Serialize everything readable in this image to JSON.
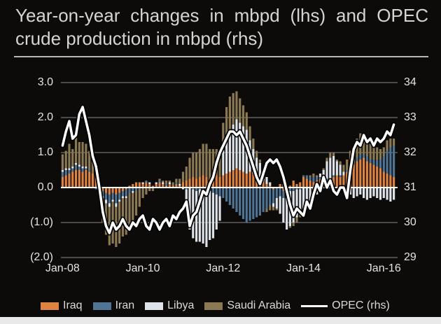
{
  "title": {
    "line1": "Year-on-year changes in mbpd (lhs) and OPEC",
    "line2": "crude production in mbpd (rhs)"
  },
  "colors": {
    "background": "#0c0b0a",
    "title_text": "#d6d4d1",
    "axis_text": "#e6e4e1",
    "gridline": "#8a8a8a",
    "zero_line": "#ffffff",
    "iraq": "#df8340",
    "iran": "#4f7496",
    "libya": "#dde3e8",
    "saudi_arabia": "#8a7952",
    "opec_line": "#ffffff"
  },
  "chart_data": {
    "type": "bar",
    "subtype": "stacked-bars-with-line-overlay",
    "x_start": "Jan-08",
    "x_frequency": "monthly",
    "n_points": 100,
    "x_tick_labels": [
      "Jan-08",
      "Jan-10",
      "Jan-12",
      "Jan-14",
      "Jan-16"
    ],
    "x_tick_indices": [
      0,
      24,
      48,
      72,
      96
    ],
    "lhs_axis": {
      "label": "YoY change in mbpd",
      "tick_labels": [
        "3.0",
        "2.0",
        "1.0",
        "0.0",
        "(1.0)",
        "(2.0)"
      ],
      "tick_values": [
        3,
        2,
        1,
        0,
        -1,
        -2
      ],
      "ylim": [
        -2,
        3
      ]
    },
    "rhs_axis": {
      "label": "OPEC crude production in mbpd",
      "tick_labels": [
        "34",
        "33",
        "32",
        "31",
        "30",
        "29"
      ],
      "tick_values": [
        34,
        33,
        32,
        31,
        30,
        29
      ],
      "ylim": [
        29,
        34
      ]
    },
    "grid": "horizontal-only",
    "legend_position": "bottom",
    "series": [
      {
        "name": "Iraq",
        "color": "#df8340",
        "axis": "lhs",
        "values": [
          0.3,
          0.35,
          0.4,
          0.45,
          0.5,
          0.5,
          0.45,
          0.5,
          0.45,
          0.4,
          0.3,
          0.2,
          -0.1,
          -0.15,
          -0.2,
          -0.15,
          -0.2,
          -0.15,
          -0.1,
          -0.05,
          0.05,
          0.1,
          0.15,
          0.15,
          0.1,
          0.15,
          0.1,
          0.05,
          0.1,
          0.15,
          0.1,
          0.05,
          0.1,
          0.05,
          0.1,
          0.05,
          0.15,
          0.2,
          0.25,
          0.3,
          0.25,
          0.3,
          0.35,
          0.3,
          0.25,
          0.3,
          0.35,
          0.3,
          0.35,
          0.4,
          0.45,
          0.5,
          0.55,
          0.5,
          0.45,
          0.4,
          0.45,
          0.4,
          0.35,
          0.3,
          0.2,
          0.1,
          0.05,
          -0.05,
          0,
          0.1,
          -0.1,
          -0.15,
          0.05,
          0.2,
          0.1,
          0.15,
          0.3,
          0.25,
          0.2,
          0.15,
          0.2,
          0.25,
          0.1,
          0.2,
          0.25,
          0.3,
          0.35,
          0.3,
          0.35,
          0.45,
          0.55,
          0.65,
          0.75,
          0.8,
          0.85,
          0.75,
          0.7,
          0.65,
          0.6,
          0.55,
          0.45,
          0.4,
          0.35,
          0.3
        ]
      },
      {
        "name": "Iran",
        "color": "#4f7496",
        "axis": "lhs",
        "values": [
          0.15,
          0.15,
          0.1,
          0.1,
          0.15,
          0.1,
          0.1,
          0.05,
          0.05,
          0,
          -0.05,
          -0.1,
          -0.15,
          -0.2,
          -0.25,
          -0.2,
          -0.25,
          -0.2,
          -0.15,
          -0.2,
          -0.15,
          -0.1,
          -0.1,
          -0.05,
          0,
          0.05,
          0,
          -0.05,
          0,
          0.05,
          0,
          0.05,
          0,
          0,
          0.05,
          0,
          0,
          -0.05,
          0,
          -0.05,
          -0.1,
          -0.05,
          -0.1,
          -0.15,
          -0.1,
          -0.15,
          -0.2,
          -0.25,
          -0.3,
          -0.4,
          -0.5,
          -0.6,
          -0.7,
          -0.8,
          -0.9,
          -1,
          -0.95,
          -0.9,
          -0.85,
          -0.8,
          -0.7,
          -0.6,
          -0.5,
          -0.4,
          -0.3,
          -0.25,
          -0.2,
          -0.15,
          -0.1,
          -0.1,
          -0.05,
          -0.05,
          0.05,
          0.1,
          0.1,
          0.15,
          0.1,
          0.05,
          0.1,
          0.05,
          0,
          0.05,
          0,
          0.05,
          0,
          0.05,
          0.1,
          0.05,
          0.1,
          0.15,
          0.1,
          0.15,
          0.1,
          0.15,
          0.2,
          0.25,
          0.45,
          0.65,
          0.8,
          0.9
        ]
      },
      {
        "name": "Libya",
        "color": "#dde3e8",
        "axis": "lhs",
        "values": [
          0.05,
          0.05,
          0.05,
          0.05,
          0.05,
          0.05,
          0.05,
          0.05,
          0,
          0,
          0,
          0,
          -0.05,
          -0.1,
          -0.1,
          -0.05,
          -0.1,
          -0.05,
          -0.05,
          -0.05,
          0,
          -0.05,
          0,
          0,
          0.05,
          0,
          0.05,
          0,
          0.05,
          0,
          0.05,
          0,
          0.05,
          0,
          0,
          0.05,
          -0.05,
          -0.3,
          -1.2,
          -1.4,
          -1.45,
          -1.5,
          -1.5,
          -1.55,
          -1.4,
          -1.3,
          -1,
          -0.7,
          0.7,
          1,
          1.2,
          1.3,
          1.4,
          1.35,
          1.3,
          1.25,
          0.9,
          0.7,
          0.5,
          0.4,
          0.3,
          0.2,
          0.1,
          -0.1,
          -0.3,
          -0.5,
          -0.7,
          -0.9,
          -1,
          -0.9,
          -0.8,
          -0.7,
          -0.6,
          -0.5,
          -0.4,
          -0.3,
          -0.2,
          0.1,
          0.3,
          0.5,
          0.6,
          0.55,
          0.4,
          0.3,
          0.1,
          -0.1,
          -0.2,
          -0.3,
          -0.25,
          -0.2,
          -0.3,
          -0.35,
          -0.3,
          -0.25,
          -0.3,
          -0.35,
          -0.3,
          -0.35,
          -0.4,
          -0.35
        ]
      },
      {
        "name": "Saudi Arabia",
        "color": "#8a7952",
        "axis": "lhs",
        "values": [
          0.45,
          0.5,
          0.7,
          0.5,
          0.75,
          0.65,
          0.7,
          0.65,
          0.55,
          0.35,
          0.1,
          -0.2,
          -0.7,
          -0.9,
          -1.1,
          -1.2,
          -1.15,
          -1.2,
          -1.1,
          -1.05,
          -1,
          -0.9,
          -0.7,
          -0.5,
          -0.3,
          -0.2,
          -0.1,
          -0.05,
          0,
          0.05,
          0.05,
          0.1,
          0.05,
          0.1,
          0.1,
          0.15,
          0.3,
          0.4,
          0.6,
          0.7,
          0.75,
          0.8,
          0.9,
          0.95,
          0.85,
          0.8,
          0.75,
          0.7,
          0.8,
          0.9,
          0.95,
          0.9,
          0.8,
          0.7,
          0.6,
          0.5,
          0.4,
          0.3,
          0.2,
          0.1,
          0,
          -0.1,
          -0.15,
          -0.1,
          -0.05,
          0,
          0.1,
          0.05,
          -0.05,
          -0.1,
          -0.15,
          -0.1,
          -0.05,
          0,
          0.05,
          0.1,
          0.05,
          0,
          0.05,
          0.1,
          0.15,
          0.1,
          0.05,
          0.1,
          0.2,
          0.3,
          0.4,
          0.5,
          0.55,
          0.6,
          0.55,
          0.5,
          0.45,
          0.4,
          0.35,
          0.3,
          0.25,
          0.3,
          0.25,
          0.2
        ]
      }
    ],
    "line_series": {
      "name": "OPEC (rhs)",
      "color": "#ffffff",
      "axis": "rhs",
      "values": [
        32.2,
        32.6,
        32.9,
        32.4,
        32.5,
        33.1,
        33.3,
        32.9,
        32.5,
        31.9,
        31.6,
        31,
        30.3,
        29.9,
        29.7,
        30,
        29.8,
        29.9,
        30.1,
        29.9,
        29.8,
        30,
        29.9,
        30.1,
        30.2,
        29.9,
        29.8,
        30.1,
        30,
        29.8,
        30,
        30.1,
        29.9,
        30.2,
        30.1,
        30.3,
        30.4,
        30.6,
        29.9,
        30.2,
        30.3,
        30.6,
        30.9,
        30.8,
        31.1,
        31.3,
        31.7,
        32,
        32.2,
        32.4,
        32.6,
        32.6,
        32.5,
        32.6,
        32.4,
        32.2,
        31.9,
        31.6,
        31.3,
        31.1,
        31.4,
        31.7,
        31.8,
        31.7,
        31.8,
        31.6,
        31.3,
        30.9,
        30.5,
        30.2,
        30.4,
        30.3,
        30.2,
        30.6,
        30.4,
        30.8,
        31.1,
        30.9,
        31.3,
        31,
        31.2,
        30.9,
        30.8,
        31,
        31,
        30.7,
        31.5,
        32.1,
        32.3,
        32.2,
        32.5,
        32.3,
        32.4,
        32.2,
        32.4,
        32.3,
        32.4,
        32.6,
        32.5,
        32.8
      ]
    }
  },
  "legend": {
    "items": [
      {
        "label": "Iraq",
        "swatch": "bar",
        "color": "#df8340"
      },
      {
        "label": "Iran",
        "swatch": "bar",
        "color": "#4f7496"
      },
      {
        "label": "Libya",
        "swatch": "bar",
        "color": "#dde3e8"
      },
      {
        "label": "Saudi Arabia",
        "swatch": "bar",
        "color": "#8a7952"
      },
      {
        "label": "OPEC (rhs)",
        "swatch": "line",
        "color": "#ffffff"
      }
    ]
  }
}
